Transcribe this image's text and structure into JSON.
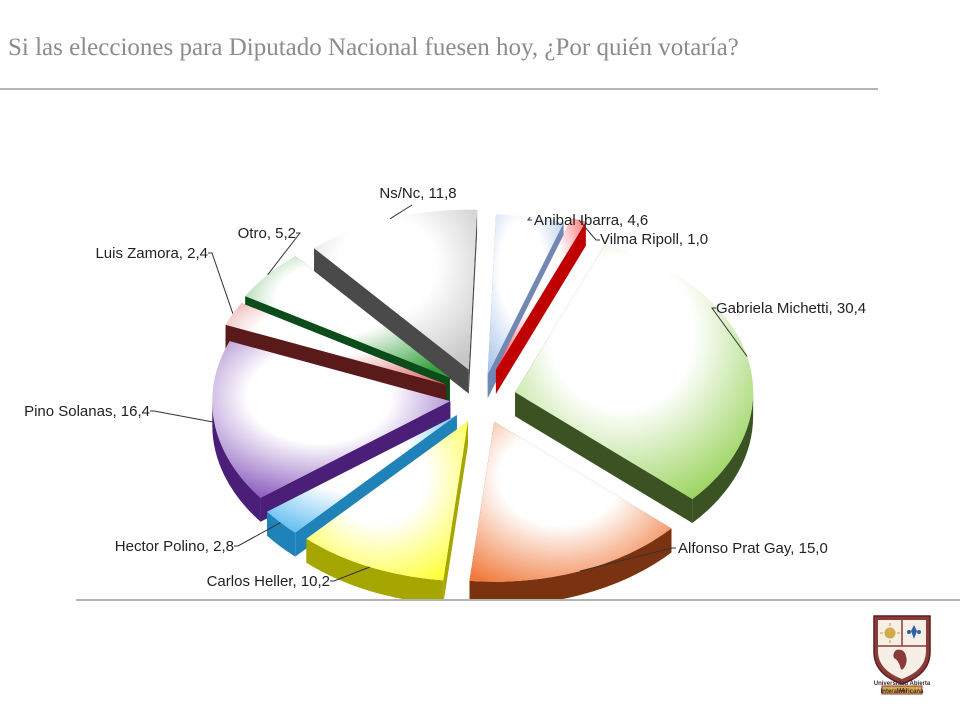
{
  "slide": {
    "title": "Si las elecciones para Diputado Nacional fuesen hoy, ¿Por quién votaría?"
  },
  "chart_data": {
    "type": "pie",
    "style": "3d-exploded",
    "unit": "%",
    "slices": [
      {
        "label": "Anibal Ibarra",
        "value": 4.6,
        "display": "Anibal Ibarra, 4,6",
        "color": "#a9c4ea",
        "dark": "#6f88b5"
      },
      {
        "label": "Vilma Ripoll",
        "value": 1.0,
        "display": "Vilma Ripoll, 1,0",
        "color": "#ff4d4d",
        "dark": "#c00000"
      },
      {
        "label": "Gabriela Michetti",
        "value": 30.4,
        "display": "Gabriela Michetti, 30,4",
        "color": "#92d050",
        "dark": "#3b5323"
      },
      {
        "label": "Alfonso Prat Gay",
        "value": 15.0,
        "display": "Alfonso Prat Gay, 15,0",
        "color": "#f07a3c",
        "dark": "#7a3210"
      },
      {
        "label": "Carlos Heller",
        "value": 10.2,
        "display": "Carlos Heller, 10,2",
        "color": "#ffff33",
        "dark": "#a6a600"
      },
      {
        "label": "Hector Polino",
        "value": 2.8,
        "display": "Hector Polino, 2,8",
        "color": "#55b8f0",
        "dark": "#1f82b8"
      },
      {
        "label": "Pino Solanas",
        "value": 16.4,
        "display": "Pino Solanas, 16,4",
        "color": "#7a45b5",
        "dark": "#4b1e78"
      },
      {
        "label": "Luis Zamora",
        "value": 2.4,
        "display": "Luis Zamora, 2,4",
        "color": "#e07777",
        "dark": "#5a1a1a"
      },
      {
        "label": "Otro",
        "value": 5.2,
        "display": "Otro, 5,2",
        "color": "#33a03c",
        "dark": "#0b4d1a"
      },
      {
        "label": "Ns/Nc",
        "value": 11.8,
        "display": "Ns/Nc, 11,8",
        "color": "#c6c6c6",
        "dark": "#4a4a4a"
      }
    ]
  },
  "logo": {
    "line1": "Universidad Abierta",
    "line2": "Interamericana",
    "banner": "UAI",
    "colors": {
      "shield": "#8b3a3a",
      "gold": "#d4a84b",
      "blue": "#2f5fa8"
    }
  }
}
